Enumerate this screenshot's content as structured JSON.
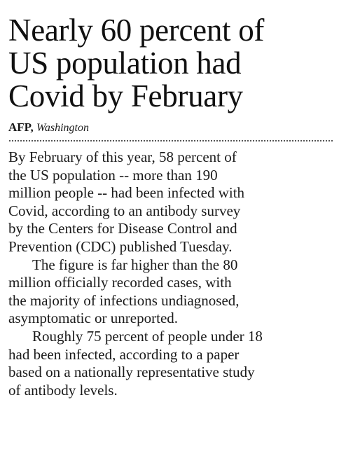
{
  "headline": {
    "lines": [
      "Nearly 60 percent of",
      "US population had",
      "Covid by February"
    ]
  },
  "byline": {
    "agency": "AFP,",
    "location": "Washington"
  },
  "paragraphs": [
    {
      "lines": [
        "By February of this year, 58 percent of",
        "the US population -- more than 190",
        "million people -- had been infected with",
        "Covid, according to an antibody survey",
        "by the Centers for Disease Control and",
        "Prevention (CDC) published Tuesday."
      ]
    },
    {
      "lines": [
        "The figure is far higher than the 80",
        "million officially recorded cases, with",
        "the majority of infections undiagnosed,",
        "asymptomatic or unreported."
      ]
    },
    {
      "lines": [
        "Roughly 75 percent of people under 18",
        "had been infected, according to a paper",
        "based on a nationally representative study",
        "of antibody levels."
      ]
    }
  ]
}
